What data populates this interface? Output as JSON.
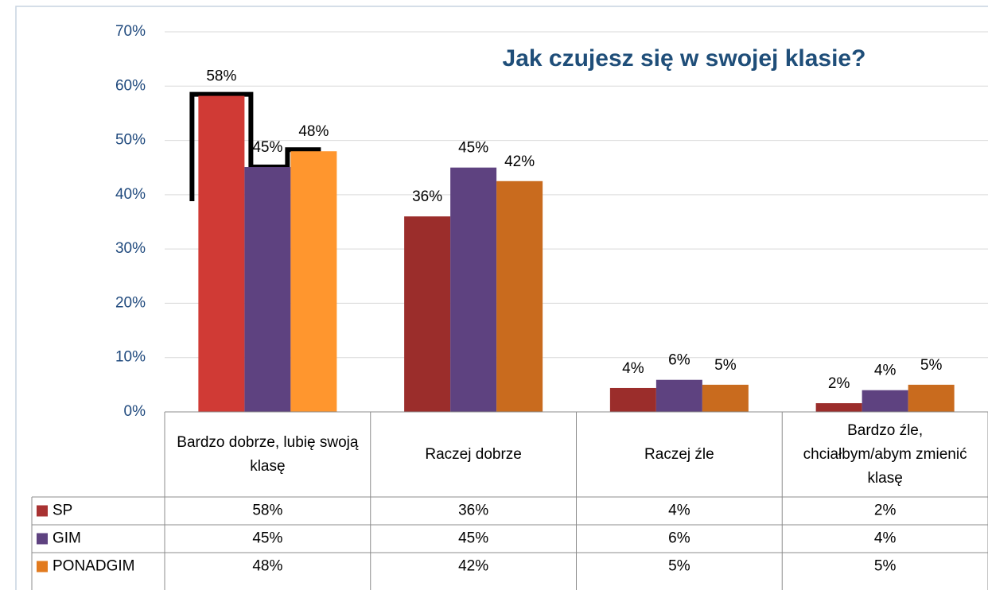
{
  "chart_data": {
    "type": "bar",
    "title": "Jak czujesz się w swojej klasie?",
    "categories": [
      "Bardzo dobrze, lubię swoją klasę",
      "Raczej dobrze",
      "Raczej źle",
      "Bardzo źle, chciałbym/abym zmienić klasę"
    ],
    "series": [
      {
        "name": "SP",
        "color": "#a83232",
        "colors": [
          "#d03a35",
          "#9b2d2b",
          "#9b2d2b",
          "#9b2d2b"
        ],
        "values": [
          58.2,
          36,
          4.4,
          1.6
        ],
        "value_labels": [
          "58%",
          "36%",
          "4%",
          "2%"
        ]
      },
      {
        "name": "GIM",
        "color": "#5e4280",
        "colors": [
          "#5e4280",
          "#5e4280",
          "#5e4280",
          "#5e4280"
        ],
        "values": [
          45.1,
          45,
          5.9,
          4
        ],
        "value_labels": [
          "45%",
          "45%",
          "6%",
          "4%"
        ]
      },
      {
        "name": "PONADGIM",
        "color": "#e27b1f",
        "colors": [
          "#ff962e",
          "#c96b1e",
          "#c96b1e",
          "#c96b1e"
        ],
        "values": [
          48,
          42.5,
          5,
          5
        ],
        "value_labels": [
          "48%",
          "42%",
          "5%",
          "5%"
        ]
      }
    ],
    "ylim": [
      0,
      70
    ],
    "yticks": [
      {
        "value": 0,
        "label": "0%"
      },
      {
        "value": 10,
        "label": "10%"
      },
      {
        "value": 20,
        "label": "20%"
      },
      {
        "value": 30,
        "label": "30%"
      },
      {
        "value": 40,
        "label": "40%"
      },
      {
        "value": 50,
        "label": "50%"
      },
      {
        "value": 60,
        "label": "60%"
      },
      {
        "value": 70,
        "label": "70%"
      }
    ],
    "grid": true,
    "data_table": true
  }
}
